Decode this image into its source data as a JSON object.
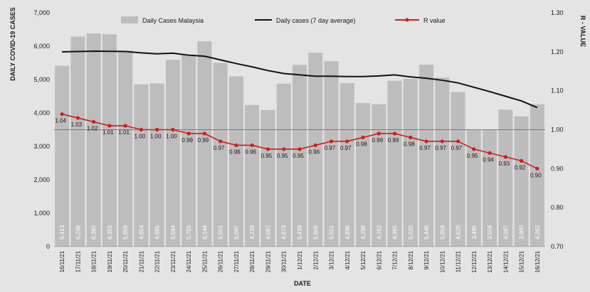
{
  "chart_data": {
    "type": "bar",
    "xlabel": "DATE",
    "ylabel": "DAILY COVID-19 CASES",
    "y2label": "R - VALUE",
    "ylim": [
      0,
      7000
    ],
    "y_ticks": [
      "0",
      "1,000",
      "2,000",
      "3,000",
      "4,000",
      "5,000",
      "6,000",
      "7,000"
    ],
    "y2lim": [
      0.7,
      1.3
    ],
    "y2_ticks": [
      "0.70",
      "0.80",
      "0.90",
      "1.00",
      "1.10",
      "1.20",
      "1.30"
    ],
    "reference_line_y2": 1.0,
    "grid": false,
    "legend_position": "top",
    "categories": [
      "16/11/21",
      "17/11/21",
      "18/11/21",
      "19/11/21",
      "20/11/21",
      "21/11/21",
      "22/11/21",
      "23/11/21",
      "24/11/21",
      "25/11/21",
      "26/11/21",
      "27/11/21",
      "28/11/21",
      "29/11/21",
      "30/11/21",
      "1/12/21",
      "2/12/21",
      "3/12/21",
      "4/12/21",
      "5/12/21",
      "6/12/21",
      "7/12/21",
      "8/12/21",
      "9/12/21",
      "10/12/21",
      "11/12/21",
      "12/12/21",
      "13/12/21",
      "14/12/21",
      "15/12/21",
      "16/12/21"
    ],
    "series": [
      {
        "name": "Daily Cases Malaysia",
        "type": "bar",
        "axis": "left",
        "values": [
          5413,
          6288,
          6380,
          6355,
          5859,
          4854,
          4885,
          5594,
          5755,
          6144,
          5501,
          5097,
          4239,
          4087,
          4879,
          5439,
          5806,
          5551,
          4896,
          4298,
          4262,
          4965,
          5020,
          5446,
          5058,
          4626,
          3490,
          3504,
          4097,
          3900,
          4262
        ],
        "labels": [
          "5,413",
          "6,288",
          "6,380",
          "6,355",
          "5,859",
          "4,854",
          "4,885",
          "5,594",
          "5,755",
          "6,144",
          "5,501",
          "5,097",
          "4,239",
          "4,087",
          "4,879",
          "5,439",
          "5,806",
          "5,551",
          "4,896",
          "4,298",
          "4,262",
          "4,965",
          "5,020",
          "5,446",
          "5,058",
          "4,626",
          "3,490",
          "3,504",
          "4,097",
          "3,900",
          "4,262"
        ]
      },
      {
        "name": "Daily cases (7 day average)",
        "type": "line",
        "axis": "left",
        "values": [
          5830,
          5840,
          5850,
          5845,
          5840,
          5800,
          5770,
          5790,
          5730,
          5700,
          5590,
          5480,
          5380,
          5270,
          5180,
          5140,
          5100,
          5100,
          5090,
          5090,
          5110,
          5140,
          5080,
          5040,
          4980,
          4900,
          4770,
          4640,
          4500,
          4360,
          4160
        ]
      },
      {
        "name": "R value",
        "type": "line",
        "axis": "right",
        "values": [
          1.04,
          1.03,
          1.02,
          1.01,
          1.01,
          1.0,
          1.0,
          1.0,
          0.99,
          0.99,
          0.97,
          0.96,
          0.96,
          0.95,
          0.95,
          0.95,
          0.96,
          0.97,
          0.97,
          0.98,
          0.99,
          0.99,
          0.98,
          0.97,
          0.97,
          0.97,
          0.95,
          0.94,
          0.93,
          0.92,
          0.9
        ],
        "labels": [
          "1.04",
          "1.03",
          "1.02",
          "1.01",
          "1.01",
          "1.00",
          "1.00",
          "1.00",
          "0.99",
          "0.99",
          "0.97",
          "0.96",
          "0.96",
          "0.95",
          "0.95",
          "0.95",
          "0.96",
          "0.97",
          "0.97",
          "0.98",
          "0.99",
          "0.99",
          "0.98",
          "0.97",
          "0.97",
          "0.97",
          "0.95",
          "0.94",
          "0.93",
          "0.92",
          "0.90"
        ]
      }
    ],
    "colors": {
      "bar": "#bdbdbd",
      "avg_line": "#111111",
      "r_line": "#cc1f1f",
      "reference": "#cc3b2e",
      "bar_label": "#ffffff",
      "text": "#1a1a1a"
    }
  }
}
